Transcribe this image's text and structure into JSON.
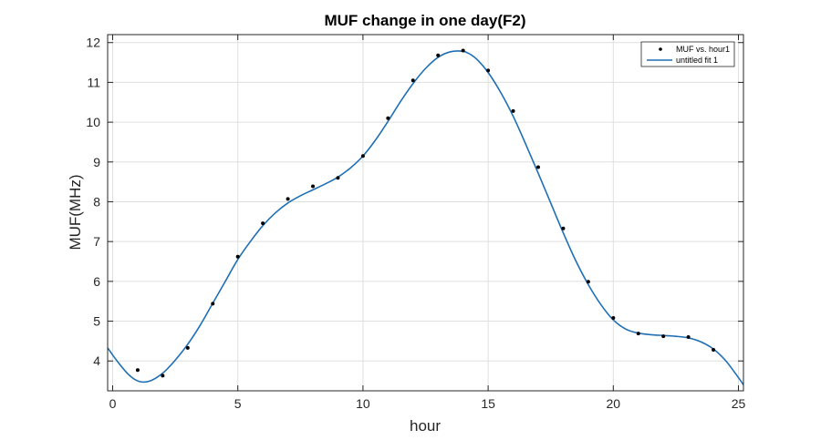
{
  "chart_data": {
    "type": "scatter",
    "title": "MUF change in one day(F2)",
    "xlabel": "hour",
    "ylabel": "MUF(MHz)",
    "xlim": [
      -0.2,
      25.2
    ],
    "ylim": [
      3.25,
      12.2
    ],
    "xticks": [
      0,
      5,
      10,
      15,
      20,
      25
    ],
    "yticks": [
      4,
      5,
      6,
      7,
      8,
      9,
      10,
      11,
      12
    ],
    "grid": true,
    "legend_position": "top-right",
    "series": [
      {
        "name": "MUF vs. hour1",
        "kind": "markers",
        "color": "#000000",
        "x": [
          1,
          2,
          3,
          4,
          5,
          6,
          7,
          8,
          9,
          10,
          11,
          12,
          13,
          14,
          15,
          16,
          17,
          18,
          19,
          20,
          21,
          22,
          23,
          24
        ],
        "y": [
          3.77,
          3.63,
          4.33,
          5.44,
          6.62,
          7.46,
          8.07,
          8.39,
          8.6,
          9.15,
          10.1,
          11.05,
          11.68,
          11.8,
          11.3,
          10.28,
          8.87,
          7.33,
          5.99,
          5.08,
          4.69,
          4.62,
          4.6,
          4.28
        ]
      },
      {
        "name": "untitled fit 1",
        "kind": "line",
        "color": "#1f6fb5",
        "x": [
          -0.2,
          0,
          0.3,
          0.6,
          0.9,
          1.2,
          1.5,
          1.8,
          2.1,
          2.5,
          3,
          3.5,
          4,
          4.5,
          5,
          5.5,
          6,
          6.5,
          7,
          7.5,
          8,
          8.5,
          9,
          9.5,
          10,
          10.5,
          11,
          11.5,
          12,
          12.5,
          13,
          13.5,
          14,
          14.3,
          14.6,
          15,
          15.5,
          16,
          16.5,
          17,
          17.5,
          18,
          18.5,
          19,
          19.5,
          20,
          20.5,
          21,
          21.5,
          22,
          22.5,
          23,
          23.5,
          24,
          24.5,
          25,
          25.2
        ],
        "y": [
          4.33,
          4.15,
          3.9,
          3.68,
          3.53,
          3.47,
          3.5,
          3.6,
          3.75,
          4.02,
          4.42,
          4.9,
          5.45,
          6.0,
          6.55,
          7.0,
          7.4,
          7.72,
          7.97,
          8.15,
          8.3,
          8.45,
          8.62,
          8.85,
          9.15,
          9.55,
          10.02,
          10.52,
          10.97,
          11.35,
          11.63,
          11.77,
          11.78,
          11.7,
          11.55,
          11.25,
          10.75,
          10.15,
          9.45,
          8.72,
          7.97,
          7.22,
          6.52,
          5.92,
          5.42,
          5.03,
          4.8,
          4.7,
          4.66,
          4.64,
          4.62,
          4.58,
          4.48,
          4.3,
          4.0,
          3.58,
          3.4
        ]
      }
    ]
  }
}
